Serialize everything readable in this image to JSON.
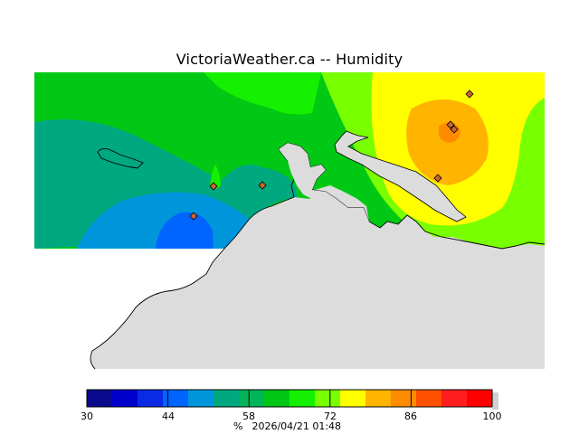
{
  "title": "VictoriaWeather.ca -- Humidity",
  "colorbar": {
    "unit": "%",
    "timestamp": "2026/04/21 01:48",
    "tick_labels": [
      "30",
      "44",
      "58",
      "72",
      "86",
      "100"
    ],
    "range": [
      30,
      100
    ],
    "colors": [
      "#0a0a8c",
      "#0000cd",
      "#0a2ae6",
      "#0064ff",
      "#0096dc",
      "#00a880",
      "#00b45a",
      "#00c814",
      "#14f000",
      "#78ff00",
      "#ffff00",
      "#ffb400",
      "#ff8c00",
      "#ff5000",
      "#ff1e1e",
      "#ff0000"
    ]
  },
  "map": {
    "land_color": "#dcdcdc",
    "station_marker_color": "#c86432",
    "zones": [
      {
        "name": "green-zone",
        "color": "#00c814"
      },
      {
        "name": "teal-zone",
        "color": "#00a880"
      },
      {
        "name": "blue-zone",
        "color": "#0096dc"
      },
      {
        "name": "dark-blue-zone",
        "color": "#0064ff"
      },
      {
        "name": "lime-zone",
        "color": "#78ff00"
      },
      {
        "name": "yellow-zone",
        "color": "#ffff00"
      },
      {
        "name": "orange-zone",
        "color": "#ffb400"
      },
      {
        "name": "dark-orange-zone",
        "color": "#ff8c00"
      }
    ]
  }
}
